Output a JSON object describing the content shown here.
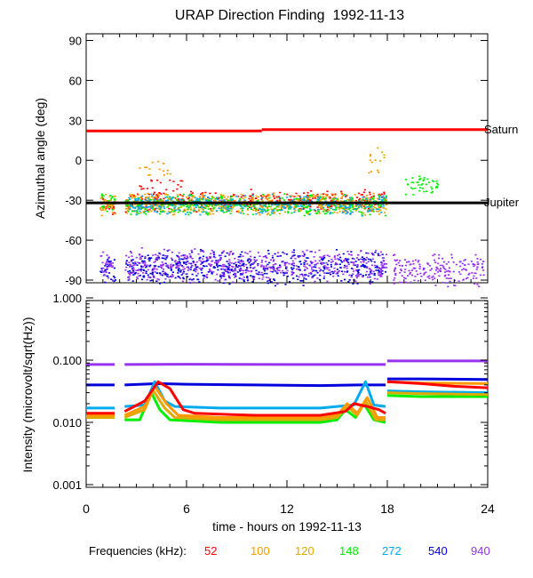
{
  "chart_data": [
    {
      "type": "scatter",
      "title": "URAP Direction Finding  1992-11-13",
      "xlabel": "",
      "ylabel": "Azimuthal angle (deg)",
      "xlim": [
        0,
        24
      ],
      "ylim": [
        -92,
        95
      ],
      "y_ticks": [
        90,
        60,
        30,
        0,
        -30,
        -60,
        -90
      ],
      "y_tick_labels": [
        "90",
        "60",
        "30",
        "0",
        "-30",
        "-60",
        "-90"
      ],
      "reference_lines": [
        {
          "name": "Saturn",
          "color": "#ff0000",
          "segments": [
            [
              0,
              10.5,
              22
            ],
            [
              10.5,
              24,
              23
            ]
          ]
        },
        {
          "name": "Jupiter",
          "color": "#000000",
          "segments": [
            [
              0,
              24,
              -32
            ]
          ]
        }
      ],
      "series": [
        {
          "name": "52",
          "color": "#ff0000",
          "core": [
            [
              0.8,
              1.7,
              -34
            ],
            [
              2.3,
              17.9,
              -30
            ]
          ],
          "high": [
            [
              3.0,
              6.0,
              -20
            ]
          ]
        },
        {
          "name": "100",
          "color": "#ff9900",
          "core": [
            [
              0.8,
              1.7,
              -33
            ],
            [
              2.3,
              17.9,
              -32
            ]
          ],
          "high": [
            [
              3.0,
              5.0,
              -5
            ],
            [
              16.8,
              17.6,
              -3
            ]
          ]
        },
        {
          "name": "120",
          "color": "#ddaa00",
          "core": [
            [
              0.8,
              1.7,
              -32
            ],
            [
              2.3,
              17.9,
              -33
            ]
          ],
          "high": [
            [
              16.8,
              17.8,
              5
            ]
          ]
        },
        {
          "name": "148",
          "color": "#00ee00",
          "core": [
            [
              0.8,
              1.7,
              -31
            ],
            [
              2.3,
              17.9,
              -33
            ],
            [
              19.0,
              21.0,
              -18
            ]
          ],
          "high": []
        },
        {
          "name": "272",
          "color": "#00aaee",
          "core": [
            [
              2.5,
              17.9,
              -33
            ]
          ],
          "high": []
        },
        {
          "name": "540",
          "color": "#0000dd",
          "core": [
            [
              0.8,
              1.7,
              -80
            ],
            [
              2.3,
              17.9,
              -80
            ]
          ],
          "high": []
        },
        {
          "name": "940",
          "color": "#9933ee",
          "core": [
            [
              0.8,
              1.7,
              -80
            ],
            [
              2.3,
              17.9,
              -79
            ],
            [
              18.3,
              23.8,
              -82
            ]
          ],
          "high": []
        }
      ]
    },
    {
      "type": "line",
      "title": "",
      "xlabel": "time - hours on 1992-11-13",
      "ylabel": "Intensity (microvolt/sqrt(Hz))",
      "xlim": [
        0,
        24
      ],
      "yscale": "log",
      "ylim": [
        0.001,
        1.0
      ],
      "x_ticks": [
        0,
        6,
        12,
        18,
        24
      ],
      "x_tick_labels": [
        "0",
        "6",
        "12",
        "18",
        "24"
      ],
      "y_ticks": [
        1.0,
        0.1,
        0.01,
        0.001
      ],
      "y_tick_labels": [
        "1.000",
        "0.100",
        "0.010",
        "0.001"
      ],
      "series": [
        {
          "name": "52",
          "color": "#ff0000",
          "points": [
            [
              0,
              0.014
            ],
            [
              1.7,
              0.014
            ],
            null,
            [
              2.3,
              0.015
            ],
            [
              3.5,
              0.022
            ],
            [
              4.3,
              0.045
            ],
            [
              5.0,
              0.035
            ],
            [
              5.8,
              0.016
            ],
            [
              6.5,
              0.014
            ],
            [
              10.0,
              0.013
            ],
            [
              12.0,
              0.013
            ],
            [
              14.0,
              0.013
            ],
            [
              15.5,
              0.015
            ],
            [
              16.0,
              0.02
            ],
            [
              16.8,
              0.018
            ],
            [
              17.5,
              0.016
            ],
            [
              17.9,
              0.014
            ],
            null,
            [
              18.0,
              0.045
            ],
            [
              20.0,
              0.042
            ],
            [
              22.0,
              0.038
            ],
            [
              24.0,
              0.036
            ]
          ]
        },
        {
          "name": "100",
          "color": "#ff9900",
          "points": [
            [
              0,
              0.013
            ],
            [
              1.7,
              0.013
            ],
            null,
            [
              2.3,
              0.013
            ],
            [
              3.5,
              0.018
            ],
            [
              4.1,
              0.038
            ],
            [
              4.8,
              0.02
            ],
            [
              5.5,
              0.013
            ],
            [
              8.0,
              0.012
            ],
            [
              12.0,
              0.012
            ],
            [
              14.0,
              0.012
            ],
            [
              15.0,
              0.013
            ],
            [
              15.6,
              0.02
            ],
            [
              16.2,
              0.014
            ],
            [
              16.8,
              0.025
            ],
            [
              17.4,
              0.012
            ],
            [
              17.9,
              0.012
            ],
            null,
            [
              18.0,
              0.045
            ],
            [
              20.0,
              0.043
            ],
            [
              24.0,
              0.042
            ]
          ]
        },
        {
          "name": "120",
          "color": "#ddaa00",
          "points": [
            [
              0,
              0.012
            ],
            [
              1.7,
              0.012
            ],
            null,
            [
              2.3,
              0.012
            ],
            [
              3.5,
              0.016
            ],
            [
              4.0,
              0.033
            ],
            [
              4.7,
              0.017
            ],
            [
              5.3,
              0.012
            ],
            [
              8.0,
              0.011
            ],
            [
              12.0,
              0.011
            ],
            [
              14.0,
              0.011
            ],
            [
              15.0,
              0.012
            ],
            [
              15.6,
              0.018
            ],
            [
              16.2,
              0.013
            ],
            [
              16.7,
              0.022
            ],
            [
              17.3,
              0.011
            ],
            [
              17.9,
              0.011
            ],
            null,
            [
              18.0,
              0.03
            ],
            [
              20.0,
              0.029
            ],
            [
              24.0,
              0.028
            ]
          ]
        },
        {
          "name": "148",
          "color": "#00ee00",
          "points": [
            [
              0,
              0.012
            ],
            [
              1.7,
              0.012
            ],
            null,
            [
              2.3,
              0.011
            ],
            [
              3.2,
              0.011
            ],
            [
              3.9,
              0.03
            ],
            [
              4.4,
              0.016
            ],
            [
              5.0,
              0.011
            ],
            [
              8.0,
              0.01
            ],
            [
              12.0,
              0.01
            ],
            [
              14.0,
              0.01
            ],
            [
              15.0,
              0.011
            ],
            [
              15.5,
              0.016
            ],
            [
              16.1,
              0.012
            ],
            [
              16.6,
              0.02
            ],
            [
              17.2,
              0.011
            ],
            [
              17.9,
              0.01
            ],
            null,
            [
              18.0,
              0.027
            ],
            [
              20.0,
              0.026
            ],
            [
              24.0,
              0.026
            ]
          ]
        },
        {
          "name": "272",
          "color": "#00aaee",
          "points": [
            [
              0,
              0.017
            ],
            [
              1.7,
              0.017
            ],
            null,
            [
              2.3,
              0.018
            ],
            [
              3.5,
              0.019
            ],
            [
              4.1,
              0.045
            ],
            [
              4.7,
              0.022
            ],
            [
              5.3,
              0.018
            ],
            [
              8.0,
              0.017
            ],
            [
              12.0,
              0.017
            ],
            [
              14.0,
              0.017
            ],
            [
              15.0,
              0.018
            ],
            [
              16.0,
              0.019
            ],
            [
              16.7,
              0.045
            ],
            [
              17.2,
              0.019
            ],
            [
              17.9,
              0.018
            ],
            null,
            [
              18.0,
              0.032
            ],
            [
              20.0,
              0.031
            ],
            [
              24.0,
              0.03
            ]
          ]
        },
        {
          "name": "540",
          "color": "#0000dd",
          "points": [
            [
              0,
              0.04
            ],
            [
              1.7,
              0.04
            ],
            null,
            [
              2.3,
              0.04
            ],
            [
              4.3,
              0.042
            ],
            [
              6.0,
              0.041
            ],
            [
              10.0,
              0.04
            ],
            [
              14.0,
              0.039
            ],
            [
              16.3,
              0.04
            ],
            [
              17.9,
              0.04
            ],
            null,
            [
              18.0,
              0.05
            ],
            [
              20.0,
              0.05
            ],
            [
              24.0,
              0.049
            ]
          ]
        },
        {
          "name": "940",
          "color": "#9933ee",
          "points": [
            [
              0,
              0.085
            ],
            [
              1.7,
              0.085
            ],
            null,
            [
              2.3,
              0.085
            ],
            [
              6.0,
              0.086
            ],
            [
              12.0,
              0.085
            ],
            [
              17.9,
              0.085
            ],
            null,
            [
              18.0,
              0.097
            ],
            [
              21.0,
              0.097
            ],
            [
              24.0,
              0.097
            ]
          ]
        }
      ]
    }
  ],
  "legend": {
    "label": "Frequencies (kHz):",
    "entries": [
      {
        "text": "52",
        "color": "#ff0000"
      },
      {
        "text": "100",
        "color": "#ff9900"
      },
      {
        "text": "120",
        "color": "#ddaa00"
      },
      {
        "text": "148",
        "color": "#00ee00"
      },
      {
        "text": "272",
        "color": "#00aaee"
      },
      {
        "text": "540",
        "color": "#0000dd"
      },
      {
        "text": "940",
        "color": "#9933ee"
      }
    ]
  }
}
